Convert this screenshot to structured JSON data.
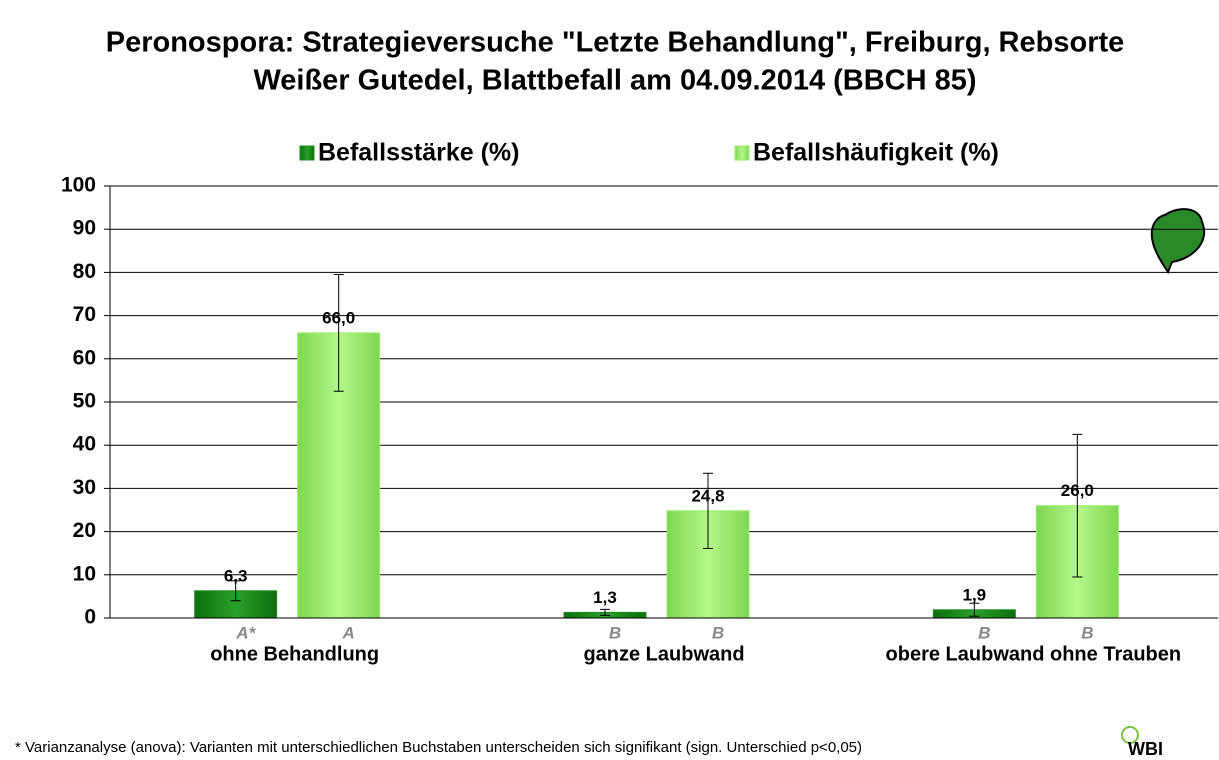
{
  "chart_data": {
    "type": "bar",
    "title": "Peronospora: Strategieversuche \"Letzte Behandlung\", Freiburg, Rebsorte",
    "subtitle": "Weißer Gutedel, Blattbefall am 04.09.2014 (BBCH 85)",
    "categories": [
      "ohne Behandlung",
      "ganze Laubwand",
      "obere Laubwand ohne Trauben"
    ],
    "series": [
      {
        "name": "Befallsstärke (%)",
        "color": "#1e8c1e",
        "values": [
          6.3,
          1.3,
          1.9
        ],
        "value_labels": [
          "6,3",
          "1,3",
          "1,9"
        ],
        "errors": [
          2.3,
          0.7,
          1.5
        ],
        "letters": [
          "A*",
          "B",
          "B"
        ]
      },
      {
        "name": "Befallshäufigkeit (%)",
        "color": "#99ee66",
        "values": [
          66.0,
          24.8,
          26.0
        ],
        "value_labels": [
          "66,0",
          "24,8",
          "26,0"
        ],
        "errors": [
          13.5,
          8.7,
          16.5
        ],
        "letters": [
          "A",
          "B",
          "B"
        ]
      }
    ],
    "ylim": [
      0,
      100
    ],
    "yticks": [
      0,
      10,
      20,
      30,
      40,
      50,
      60,
      70,
      80,
      90,
      100
    ],
    "grid": true,
    "legend": "top",
    "footnote": "* Varianzanalyse (anova): Varianten mit unterschiedlichen Buchstaben unterscheiden sich signifikant (sign. Unterschied p<0,05)",
    "logo": "WBI"
  }
}
